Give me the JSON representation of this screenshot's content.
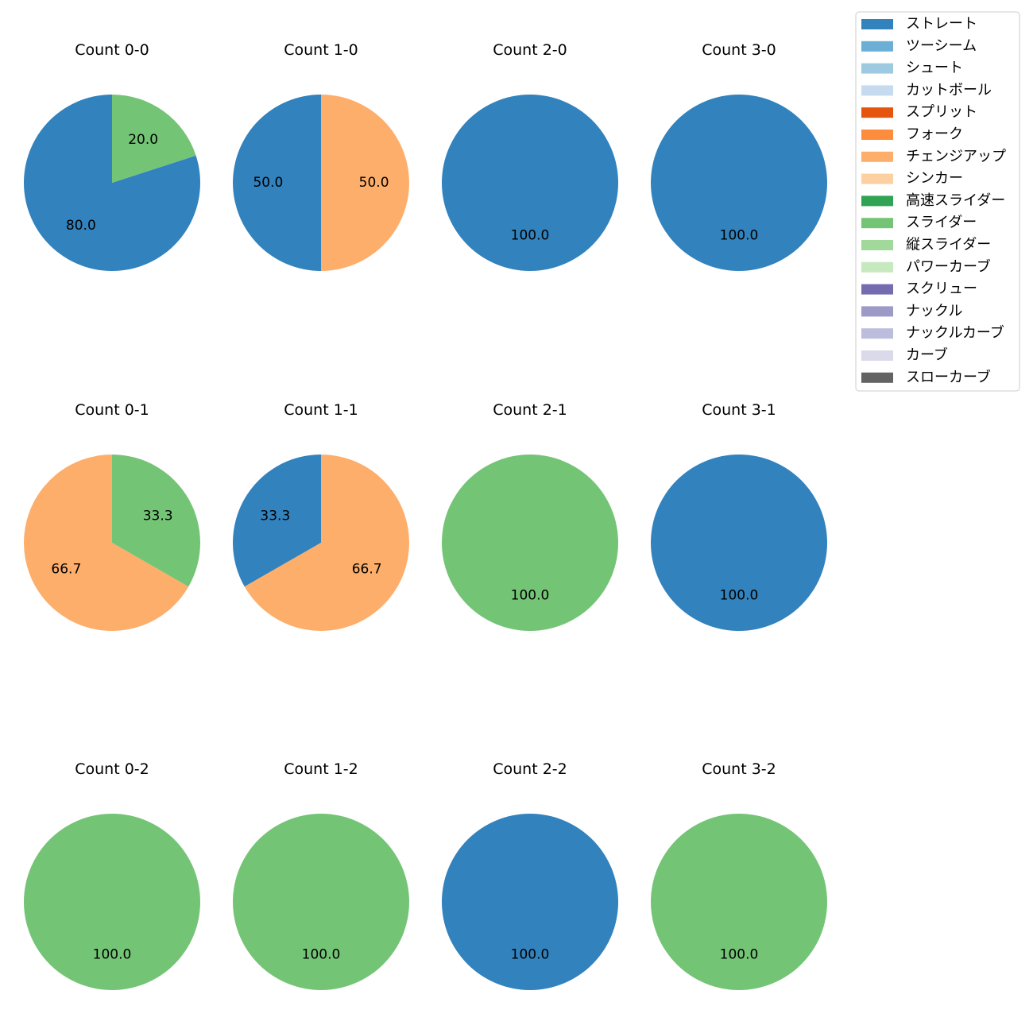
{
  "chart_data": {
    "type": "pie",
    "pitch_types": [
      {
        "name": "ストレート",
        "color": "#3182bd"
      },
      {
        "name": "ツーシーム",
        "color": "#6baed6"
      },
      {
        "name": "シュート",
        "color": "#9ecae1"
      },
      {
        "name": "カットボール",
        "color": "#c6dbef"
      },
      {
        "name": "スプリット",
        "color": "#e6550d"
      },
      {
        "name": "フォーク",
        "color": "#fd8d3c"
      },
      {
        "name": "チェンジアップ",
        "color": "#fdae6b"
      },
      {
        "name": "シンカー",
        "color": "#fdd0a2"
      },
      {
        "name": "高速スライダー",
        "color": "#31a354"
      },
      {
        "name": "スライダー",
        "color": "#74c476"
      },
      {
        "name": "縦スライダー",
        "color": "#a1d99b"
      },
      {
        "name": "パワーカーブ",
        "color": "#c7e9c0"
      },
      {
        "name": "スクリュー",
        "color": "#756bb1"
      },
      {
        "name": "ナックル",
        "color": "#9e9ac8"
      },
      {
        "name": "ナックルカーブ",
        "color": "#bcbddc"
      },
      {
        "name": "カーブ",
        "color": "#dadaeb"
      },
      {
        "name": "スローカーブ",
        "color": "#636363"
      }
    ],
    "charts": [
      {
        "title": "Count 0-0",
        "slices": [
          {
            "type": "ストレート",
            "value": 80.0,
            "label": "80.0"
          },
          {
            "type": "スライダー",
            "value": 20.0,
            "label": "20.0"
          }
        ]
      },
      {
        "title": "Count 1-0",
        "slices": [
          {
            "type": "ストレート",
            "value": 50.0,
            "label": "50.0"
          },
          {
            "type": "チェンジアップ",
            "value": 50.0,
            "label": "50.0"
          }
        ]
      },
      {
        "title": "Count 2-0",
        "slices": [
          {
            "type": "ストレート",
            "value": 100.0,
            "label": "100.0"
          }
        ]
      },
      {
        "title": "Count 3-0",
        "slices": [
          {
            "type": "ストレート",
            "value": 100.0,
            "label": "100.0"
          }
        ]
      },
      {
        "title": "Count 0-1",
        "slices": [
          {
            "type": "チェンジアップ",
            "value": 66.7,
            "label": "66.7"
          },
          {
            "type": "スライダー",
            "value": 33.3,
            "label": "33.3"
          }
        ]
      },
      {
        "title": "Count 1-1",
        "slices": [
          {
            "type": "ストレート",
            "value": 33.3,
            "label": "33.3"
          },
          {
            "type": "チェンジアップ",
            "value": 66.7,
            "label": "66.7"
          }
        ]
      },
      {
        "title": "Count 2-1",
        "slices": [
          {
            "type": "スライダー",
            "value": 100.0,
            "label": "100.0"
          }
        ]
      },
      {
        "title": "Count 3-1",
        "slices": [
          {
            "type": "ストレート",
            "value": 100.0,
            "label": "100.0"
          }
        ]
      },
      {
        "title": "Count 0-2",
        "slices": [
          {
            "type": "スライダー",
            "value": 100.0,
            "label": "100.0"
          }
        ]
      },
      {
        "title": "Count 1-2",
        "slices": [
          {
            "type": "スライダー",
            "value": 100.0,
            "label": "100.0"
          }
        ]
      },
      {
        "title": "Count 2-2",
        "slices": [
          {
            "type": "ストレート",
            "value": 100.0,
            "label": "100.0"
          }
        ]
      },
      {
        "title": "Count 3-2",
        "slices": [
          {
            "type": "スライダー",
            "value": 100.0,
            "label": "100.0"
          }
        ]
      }
    ],
    "legend_position": "top-right"
  }
}
